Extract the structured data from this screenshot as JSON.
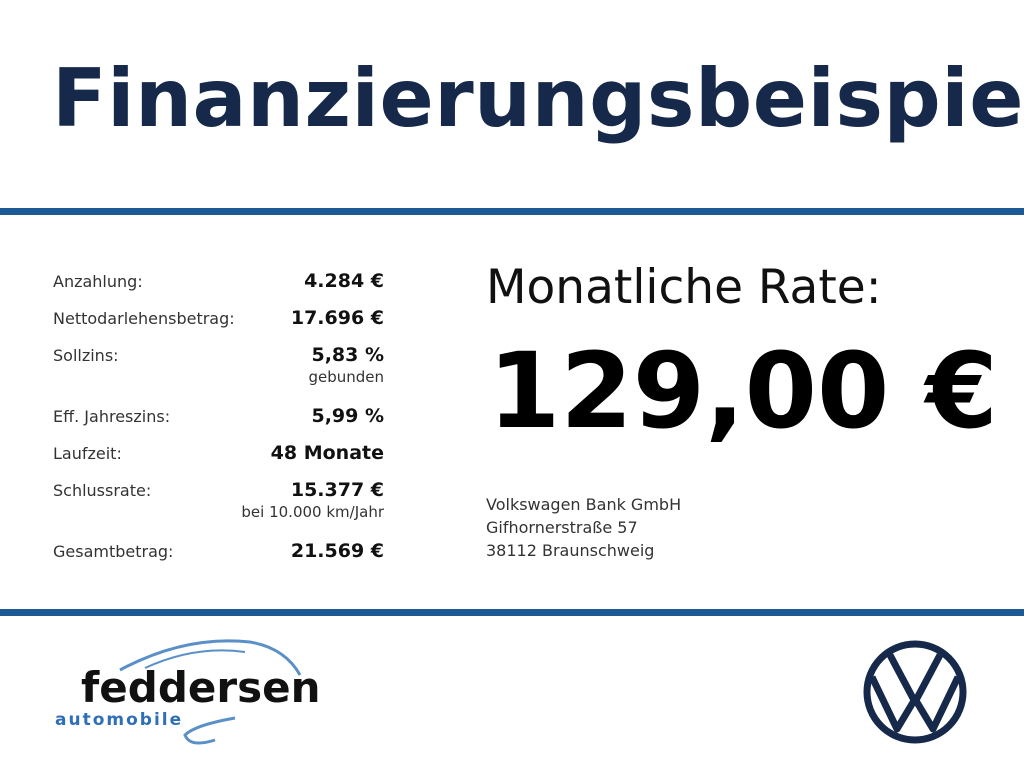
{
  "header": {
    "title": "Finanzierungsbeispiel"
  },
  "details": {
    "rows": [
      {
        "label": "Anzahlung:",
        "value": "4.284 €"
      },
      {
        "label": "Nettodarlehensbetrag:",
        "value": "17.696 €"
      },
      {
        "label": "Sollzins:",
        "value": "5,83 %",
        "note": "gebunden"
      },
      {
        "label": "Eff. Jahreszins:",
        "value": "5,99 %"
      },
      {
        "label": "Laufzeit:",
        "value": "48 Monate"
      },
      {
        "label": "Schlussrate:",
        "value": "15.377 €",
        "note": "bei 10.000 km/Jahr"
      },
      {
        "label": "Gesamtbetrag:",
        "value": "21.569 €"
      }
    ]
  },
  "rate": {
    "label": "Monatliche Rate:",
    "value": "129,00 €"
  },
  "bank": {
    "lines": [
      "Volkswagen Bank GmbH",
      "Gifhornerstraße 57",
      "38112 Braunschweig"
    ]
  },
  "dealer": {
    "name": "feddersen",
    "tagline": "automobile"
  }
}
